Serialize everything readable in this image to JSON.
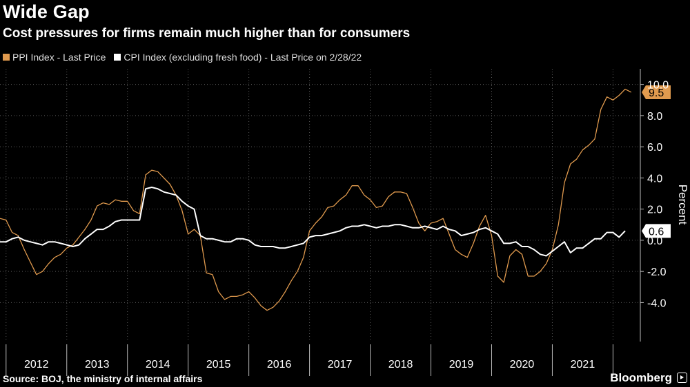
{
  "header": {
    "title": "Wide Gap",
    "subtitle": "Cost pressures for firms remain much higher than for consumers"
  },
  "footer": {
    "source": "Source: BOJ, the ministry of internal affairs",
    "brand": "Bloomberg"
  },
  "colors": {
    "ppi": "#e09a4e",
    "cpi": "#ffffff",
    "background": "#000000",
    "grid": "#555555"
  },
  "chart_data": {
    "type": "line",
    "title": "Wide Gap",
    "subtitle": "Cost pressures for firms remain much higher than for consumers",
    "ylabel": "Percent",
    "xlabel": "",
    "ylim": [
      -6.5,
      11
    ],
    "yticks": [
      {
        "value": 10,
        "label": "10.0"
      },
      {
        "value": 8,
        "label": "8.0"
      },
      {
        "value": 6,
        "label": "6.0"
      },
      {
        "value": 4,
        "label": "4.0"
      },
      {
        "value": 2,
        "label": "2.0"
      },
      {
        "value": 0,
        "label": "0.0"
      },
      {
        "value": -2,
        "label": "-2.0"
      },
      {
        "value": -4,
        "label": "-4.0"
      }
    ],
    "x_start": 2011.9,
    "x_end": 2022.45,
    "year_labels": [
      "2012",
      "2013",
      "2014",
      "2015",
      "2016",
      "2017",
      "2018",
      "2019",
      "2020",
      "2021"
    ],
    "legend_position": "top-left",
    "series": [
      {
        "name": "PPI Index - Last Price",
        "color": "#e09a4e",
        "last_value_label": "9.5",
        "points": [
          [
            2011.9,
            1.4
          ],
          [
            2012.0,
            1.3
          ],
          [
            2012.1,
            0.5
          ],
          [
            2012.2,
            0.3
          ],
          [
            2012.3,
            -0.6
          ],
          [
            2012.4,
            -1.4
          ],
          [
            2012.5,
            -2.2
          ],
          [
            2012.6,
            -2.0
          ],
          [
            2012.7,
            -1.5
          ],
          [
            2012.8,
            -1.1
          ],
          [
            2012.9,
            -0.9
          ],
          [
            2013.0,
            -0.5
          ],
          [
            2013.1,
            -0.3
          ],
          [
            2013.2,
            0.2
          ],
          [
            2013.3,
            0.7
          ],
          [
            2013.4,
            1.3
          ],
          [
            2013.5,
            2.2
          ],
          [
            2013.6,
            2.4
          ],
          [
            2013.7,
            2.3
          ],
          [
            2013.8,
            2.6
          ],
          [
            2013.9,
            2.5
          ],
          [
            2014.0,
            2.5
          ],
          [
            2014.1,
            1.9
          ],
          [
            2014.2,
            1.7
          ],
          [
            2014.3,
            4.2
          ],
          [
            2014.4,
            4.5
          ],
          [
            2014.5,
            4.4
          ],
          [
            2014.6,
            4.0
          ],
          [
            2014.7,
            3.6
          ],
          [
            2014.8,
            2.9
          ],
          [
            2014.9,
            1.9
          ],
          [
            2015.0,
            0.4
          ],
          [
            2015.1,
            0.7
          ],
          [
            2015.2,
            0.3
          ],
          [
            2015.3,
            -2.1
          ],
          [
            2015.4,
            -2.2
          ],
          [
            2015.5,
            -3.3
          ],
          [
            2015.6,
            -3.8
          ],
          [
            2015.7,
            -3.6
          ],
          [
            2015.8,
            -3.6
          ],
          [
            2015.9,
            -3.5
          ],
          [
            2016.0,
            -3.3
          ],
          [
            2016.1,
            -3.7
          ],
          [
            2016.2,
            -4.2
          ],
          [
            2016.3,
            -4.5
          ],
          [
            2016.4,
            -4.3
          ],
          [
            2016.5,
            -3.9
          ],
          [
            2016.6,
            -3.3
          ],
          [
            2016.7,
            -2.6
          ],
          [
            2016.8,
            -2.0
          ],
          [
            2016.9,
            -1.1
          ],
          [
            2017.0,
            0.6
          ],
          [
            2017.1,
            1.1
          ],
          [
            2017.2,
            1.5
          ],
          [
            2017.3,
            2.1
          ],
          [
            2017.4,
            2.2
          ],
          [
            2017.5,
            2.6
          ],
          [
            2017.6,
            2.9
          ],
          [
            2017.7,
            3.5
          ],
          [
            2017.8,
            3.5
          ],
          [
            2017.9,
            2.9
          ],
          [
            2018.0,
            2.6
          ],
          [
            2018.1,
            2.1
          ],
          [
            2018.2,
            2.2
          ],
          [
            2018.3,
            2.8
          ],
          [
            2018.4,
            3.1
          ],
          [
            2018.5,
            3.1
          ],
          [
            2018.6,
            3.0
          ],
          [
            2018.7,
            2.1
          ],
          [
            2018.8,
            1.1
          ],
          [
            2018.9,
            0.6
          ],
          [
            2019.0,
            1.1
          ],
          [
            2019.1,
            1.2
          ],
          [
            2019.2,
            1.4
          ],
          [
            2019.3,
            0.4
          ],
          [
            2019.4,
            -0.6
          ],
          [
            2019.5,
            -0.9
          ],
          [
            2019.6,
            -1.1
          ],
          [
            2019.7,
            -0.2
          ],
          [
            2019.8,
            0.9
          ],
          [
            2019.9,
            1.6
          ],
          [
            2020.0,
            0.3
          ],
          [
            2020.1,
            -2.3
          ],
          [
            2020.2,
            -2.7
          ],
          [
            2020.3,
            -1.0
          ],
          [
            2020.4,
            -0.6
          ],
          [
            2020.5,
            -0.9
          ],
          [
            2020.6,
            -2.3
          ],
          [
            2020.7,
            -2.3
          ],
          [
            2020.8,
            -2.0
          ],
          [
            2020.9,
            -1.5
          ],
          [
            2021.0,
            -0.6
          ],
          [
            2021.1,
            1.0
          ],
          [
            2021.2,
            3.7
          ],
          [
            2021.3,
            4.9
          ],
          [
            2021.4,
            5.2
          ],
          [
            2021.5,
            5.8
          ],
          [
            2021.6,
            6.1
          ],
          [
            2021.7,
            6.5
          ],
          [
            2021.8,
            8.4
          ],
          [
            2021.9,
            9.2
          ],
          [
            2022.0,
            9.0
          ],
          [
            2022.1,
            9.3
          ],
          [
            2022.2,
            9.7
          ],
          [
            2022.3,
            9.5
          ]
        ]
      },
      {
        "name": "CPI Index (excluding fresh food) - Last Price on 2/28/22",
        "color": "#ffffff",
        "last_value_label": "0.6",
        "points": [
          [
            2011.9,
            -0.1
          ],
          [
            2012.0,
            -0.1
          ],
          [
            2012.1,
            0.1
          ],
          [
            2012.2,
            0.2
          ],
          [
            2012.3,
            0.0
          ],
          [
            2012.4,
            -0.1
          ],
          [
            2012.5,
            -0.2
          ],
          [
            2012.6,
            -0.3
          ],
          [
            2012.7,
            -0.1
          ],
          [
            2012.8,
            -0.1
          ],
          [
            2012.9,
            -0.2
          ],
          [
            2013.0,
            -0.3
          ],
          [
            2013.1,
            -0.4
          ],
          [
            2013.2,
            -0.3
          ],
          [
            2013.3,
            0.1
          ],
          [
            2013.4,
            0.4
          ],
          [
            2013.5,
            0.7
          ],
          [
            2013.6,
            0.7
          ],
          [
            2013.7,
            0.9
          ],
          [
            2013.8,
            1.2
          ],
          [
            2013.9,
            1.3
          ],
          [
            2014.0,
            1.3
          ],
          [
            2014.1,
            1.3
          ],
          [
            2014.2,
            1.3
          ],
          [
            2014.3,
            3.3
          ],
          [
            2014.4,
            3.4
          ],
          [
            2014.5,
            3.3
          ],
          [
            2014.6,
            3.1
          ],
          [
            2014.7,
            3.0
          ],
          [
            2014.8,
            2.9
          ],
          [
            2014.9,
            2.5
          ],
          [
            2015.0,
            2.2
          ],
          [
            2015.1,
            2.0
          ],
          [
            2015.2,
            0.3
          ],
          [
            2015.3,
            0.1
          ],
          [
            2015.4,
            0.1
          ],
          [
            2015.5,
            0.0
          ],
          [
            2015.6,
            -0.1
          ],
          [
            2015.7,
            -0.1
          ],
          [
            2015.8,
            0.1
          ],
          [
            2015.9,
            0.1
          ],
          [
            2016.0,
            0.0
          ],
          [
            2016.1,
            -0.3
          ],
          [
            2016.2,
            -0.4
          ],
          [
            2016.3,
            -0.4
          ],
          [
            2016.4,
            -0.4
          ],
          [
            2016.5,
            -0.5
          ],
          [
            2016.6,
            -0.5
          ],
          [
            2016.7,
            -0.4
          ],
          [
            2016.8,
            -0.3
          ],
          [
            2016.9,
            -0.2
          ],
          [
            2017.0,
            0.2
          ],
          [
            2017.1,
            0.3
          ],
          [
            2017.2,
            0.3
          ],
          [
            2017.3,
            0.4
          ],
          [
            2017.4,
            0.5
          ],
          [
            2017.5,
            0.6
          ],
          [
            2017.6,
            0.8
          ],
          [
            2017.7,
            0.9
          ],
          [
            2017.8,
            0.9
          ],
          [
            2017.9,
            1.0
          ],
          [
            2018.0,
            0.9
          ],
          [
            2018.1,
            0.8
          ],
          [
            2018.2,
            0.9
          ],
          [
            2018.3,
            0.9
          ],
          [
            2018.4,
            1.0
          ],
          [
            2018.5,
            1.0
          ],
          [
            2018.6,
            0.9
          ],
          [
            2018.7,
            0.8
          ],
          [
            2018.8,
            0.8
          ],
          [
            2018.9,
            0.9
          ],
          [
            2019.0,
            0.8
          ],
          [
            2019.1,
            0.7
          ],
          [
            2019.2,
            0.9
          ],
          [
            2019.3,
            0.7
          ],
          [
            2019.4,
            0.6
          ],
          [
            2019.5,
            0.3
          ],
          [
            2019.6,
            0.4
          ],
          [
            2019.7,
            0.5
          ],
          [
            2019.8,
            0.7
          ],
          [
            2019.9,
            0.8
          ],
          [
            2020.0,
            0.6
          ],
          [
            2020.1,
            0.4
          ],
          [
            2020.2,
            -0.2
          ],
          [
            2020.3,
            -0.2
          ],
          [
            2020.4,
            -0.1
          ],
          [
            2020.5,
            -0.4
          ],
          [
            2020.6,
            -0.4
          ],
          [
            2020.7,
            -0.6
          ],
          [
            2020.8,
            -0.9
          ],
          [
            2020.9,
            -1.0
          ],
          [
            2021.0,
            -0.7
          ],
          [
            2021.1,
            -0.4
          ],
          [
            2021.2,
            -0.1
          ],
          [
            2021.3,
            -0.8
          ],
          [
            2021.4,
            -0.5
          ],
          [
            2021.5,
            -0.5
          ],
          [
            2021.6,
            -0.2
          ],
          [
            2021.7,
            0.1
          ],
          [
            2021.8,
            0.1
          ],
          [
            2021.9,
            0.5
          ],
          [
            2022.0,
            0.5
          ],
          [
            2022.1,
            0.2
          ],
          [
            2022.2,
            0.6
          ]
        ]
      }
    ]
  }
}
